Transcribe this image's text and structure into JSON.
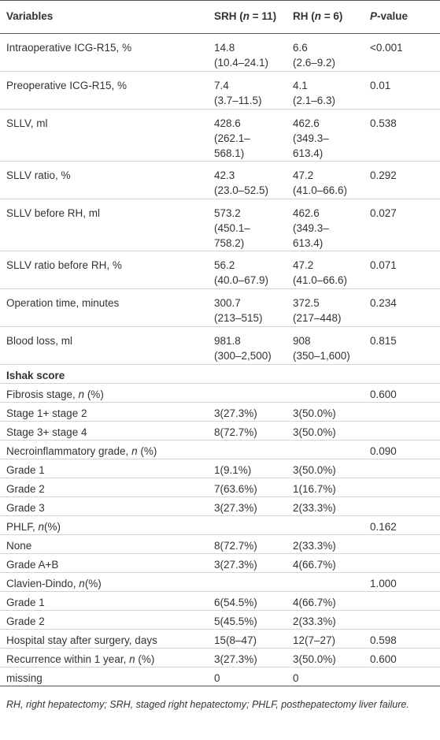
{
  "table": {
    "header": [
      "Variables",
      {
        "parts": [
          {
            "text": "SRH ("
          },
          {
            "text": "n",
            "italic": true
          },
          {
            "text": " = 11)"
          }
        ]
      },
      {
        "parts": [
          {
            "text": "RH ("
          },
          {
            "text": "n",
            "italic": true
          },
          {
            "text": " = 6)"
          }
        ]
      },
      {
        "parts": [
          {
            "text": "P",
            "italic": true
          },
          {
            "text": "-value"
          }
        ]
      }
    ],
    "rows": [
      [
        "Intraoperative ICG-R15, %",
        {
          "lines": [
            "14.8",
            "(10.4–24.1)"
          ]
        },
        {
          "lines": [
            "6.6",
            "(2.6–9.2)"
          ]
        },
        "<0.001"
      ],
      [
        "Preoperative ICG-R15, %",
        {
          "lines": [
            "7.4",
            "(3.7–11.5)"
          ]
        },
        {
          "lines": [
            "4.1",
            "(2.1–6.3)"
          ]
        },
        "0.01"
      ],
      [
        "SLLV, ml",
        {
          "lines": [
            "428.6",
            "(262.1–568.1)"
          ]
        },
        {
          "lines": [
            "462.6",
            "(349.3–613.4)"
          ]
        },
        "0.538"
      ],
      [
        "SLLV ratio, %",
        {
          "lines": [
            "42.3",
            "(23.0–52.5)"
          ]
        },
        {
          "lines": [
            "47.2",
            "(41.0–66.6)"
          ]
        },
        "0.292"
      ],
      [
        "SLLV before RH, ml",
        {
          "lines": [
            "573.2",
            "(450.1–758.2)"
          ]
        },
        {
          "lines": [
            "462.6",
            "(349.3–613.4)"
          ]
        },
        "0.027"
      ],
      [
        "SLLV ratio before RH, %",
        {
          "lines": [
            "56.2",
            "(40.0–67.9)"
          ]
        },
        {
          "lines": [
            "47.2",
            "(41.0–66.6)"
          ]
        },
        "0.071"
      ],
      [
        "Operation time, minutes",
        {
          "lines": [
            "300.7",
            "(213–515)"
          ]
        },
        {
          "lines": [
            "372.5",
            "(217–448)"
          ]
        },
        "0.234"
      ],
      [
        "Blood loss, ml",
        {
          "lines": [
            "981.8",
            "(300–2,500)"
          ]
        },
        {
          "lines": [
            "908",
            "(350–1,600)"
          ]
        },
        "0.815"
      ],
      [
        {
          "section": "Ishak score"
        },
        null,
        null,
        null
      ],
      [
        {
          "parts": [
            {
              "text": "Fibrosis stage, "
            },
            {
              "text": "n",
              "italic": true
            },
            {
              "text": " (%)"
            }
          ]
        },
        null,
        null,
        "0.600"
      ],
      [
        "Stage 1+ stage 2",
        "3(27.3%)",
        "3(50.0%)",
        null
      ],
      [
        "Stage 3+ stage 4",
        "8(72.7%)",
        "3(50.0%)",
        null
      ],
      [
        {
          "parts": [
            {
              "text": "Necroinflammatory grade, "
            },
            {
              "text": "n",
              "italic": true
            },
            {
              "text": " (%)"
            }
          ]
        },
        null,
        null,
        "0.090"
      ],
      [
        "Grade 1",
        "1(9.1%)",
        "3(50.0%)",
        null
      ],
      [
        "Grade 2",
        "7(63.6%)",
        "1(16.7%)",
        null
      ],
      [
        "Grade 3",
        "3(27.3%)",
        "2(33.3%)",
        null
      ],
      [
        {
          "parts": [
            {
              "text": "PHLF, "
            },
            {
              "text": "n",
              "italic": true
            },
            {
              "text": "(%)"
            }
          ]
        },
        null,
        null,
        "0.162"
      ],
      [
        "None",
        "8(72.7%)",
        "2(33.3%)",
        null
      ],
      [
        "Grade A+B",
        "3(27.3%)",
        "4(66.7%)",
        null
      ],
      [
        {
          "parts": [
            {
              "text": "Clavien-Dindo, "
            },
            {
              "text": "n",
              "italic": true
            },
            {
              "text": "(%)"
            }
          ]
        },
        null,
        null,
        "1.000"
      ],
      [
        "Grade 1",
        "6(54.5%)",
        "4(66.7%)",
        null
      ],
      [
        "Grade 2",
        "5(45.5%)",
        "2(33.3%)",
        null
      ],
      [
        "Hospital stay after surgery, days",
        "15(8–47)",
        "12(7–27)",
        "0.598"
      ],
      [
        {
          "parts": [
            {
              "text": "Recurrence within 1 year, "
            },
            {
              "text": "n",
              "italic": true
            },
            {
              "text": " (%)"
            }
          ]
        },
        "3(27.3%)",
        "3(50.0%)",
        "0.600"
      ],
      [
        "missing",
        "0",
        "0",
        null
      ]
    ],
    "footnote": "RH, right hepatectomy; SRH, staged right hepatectomy; PHLF, posthepatectomy liver failure."
  }
}
